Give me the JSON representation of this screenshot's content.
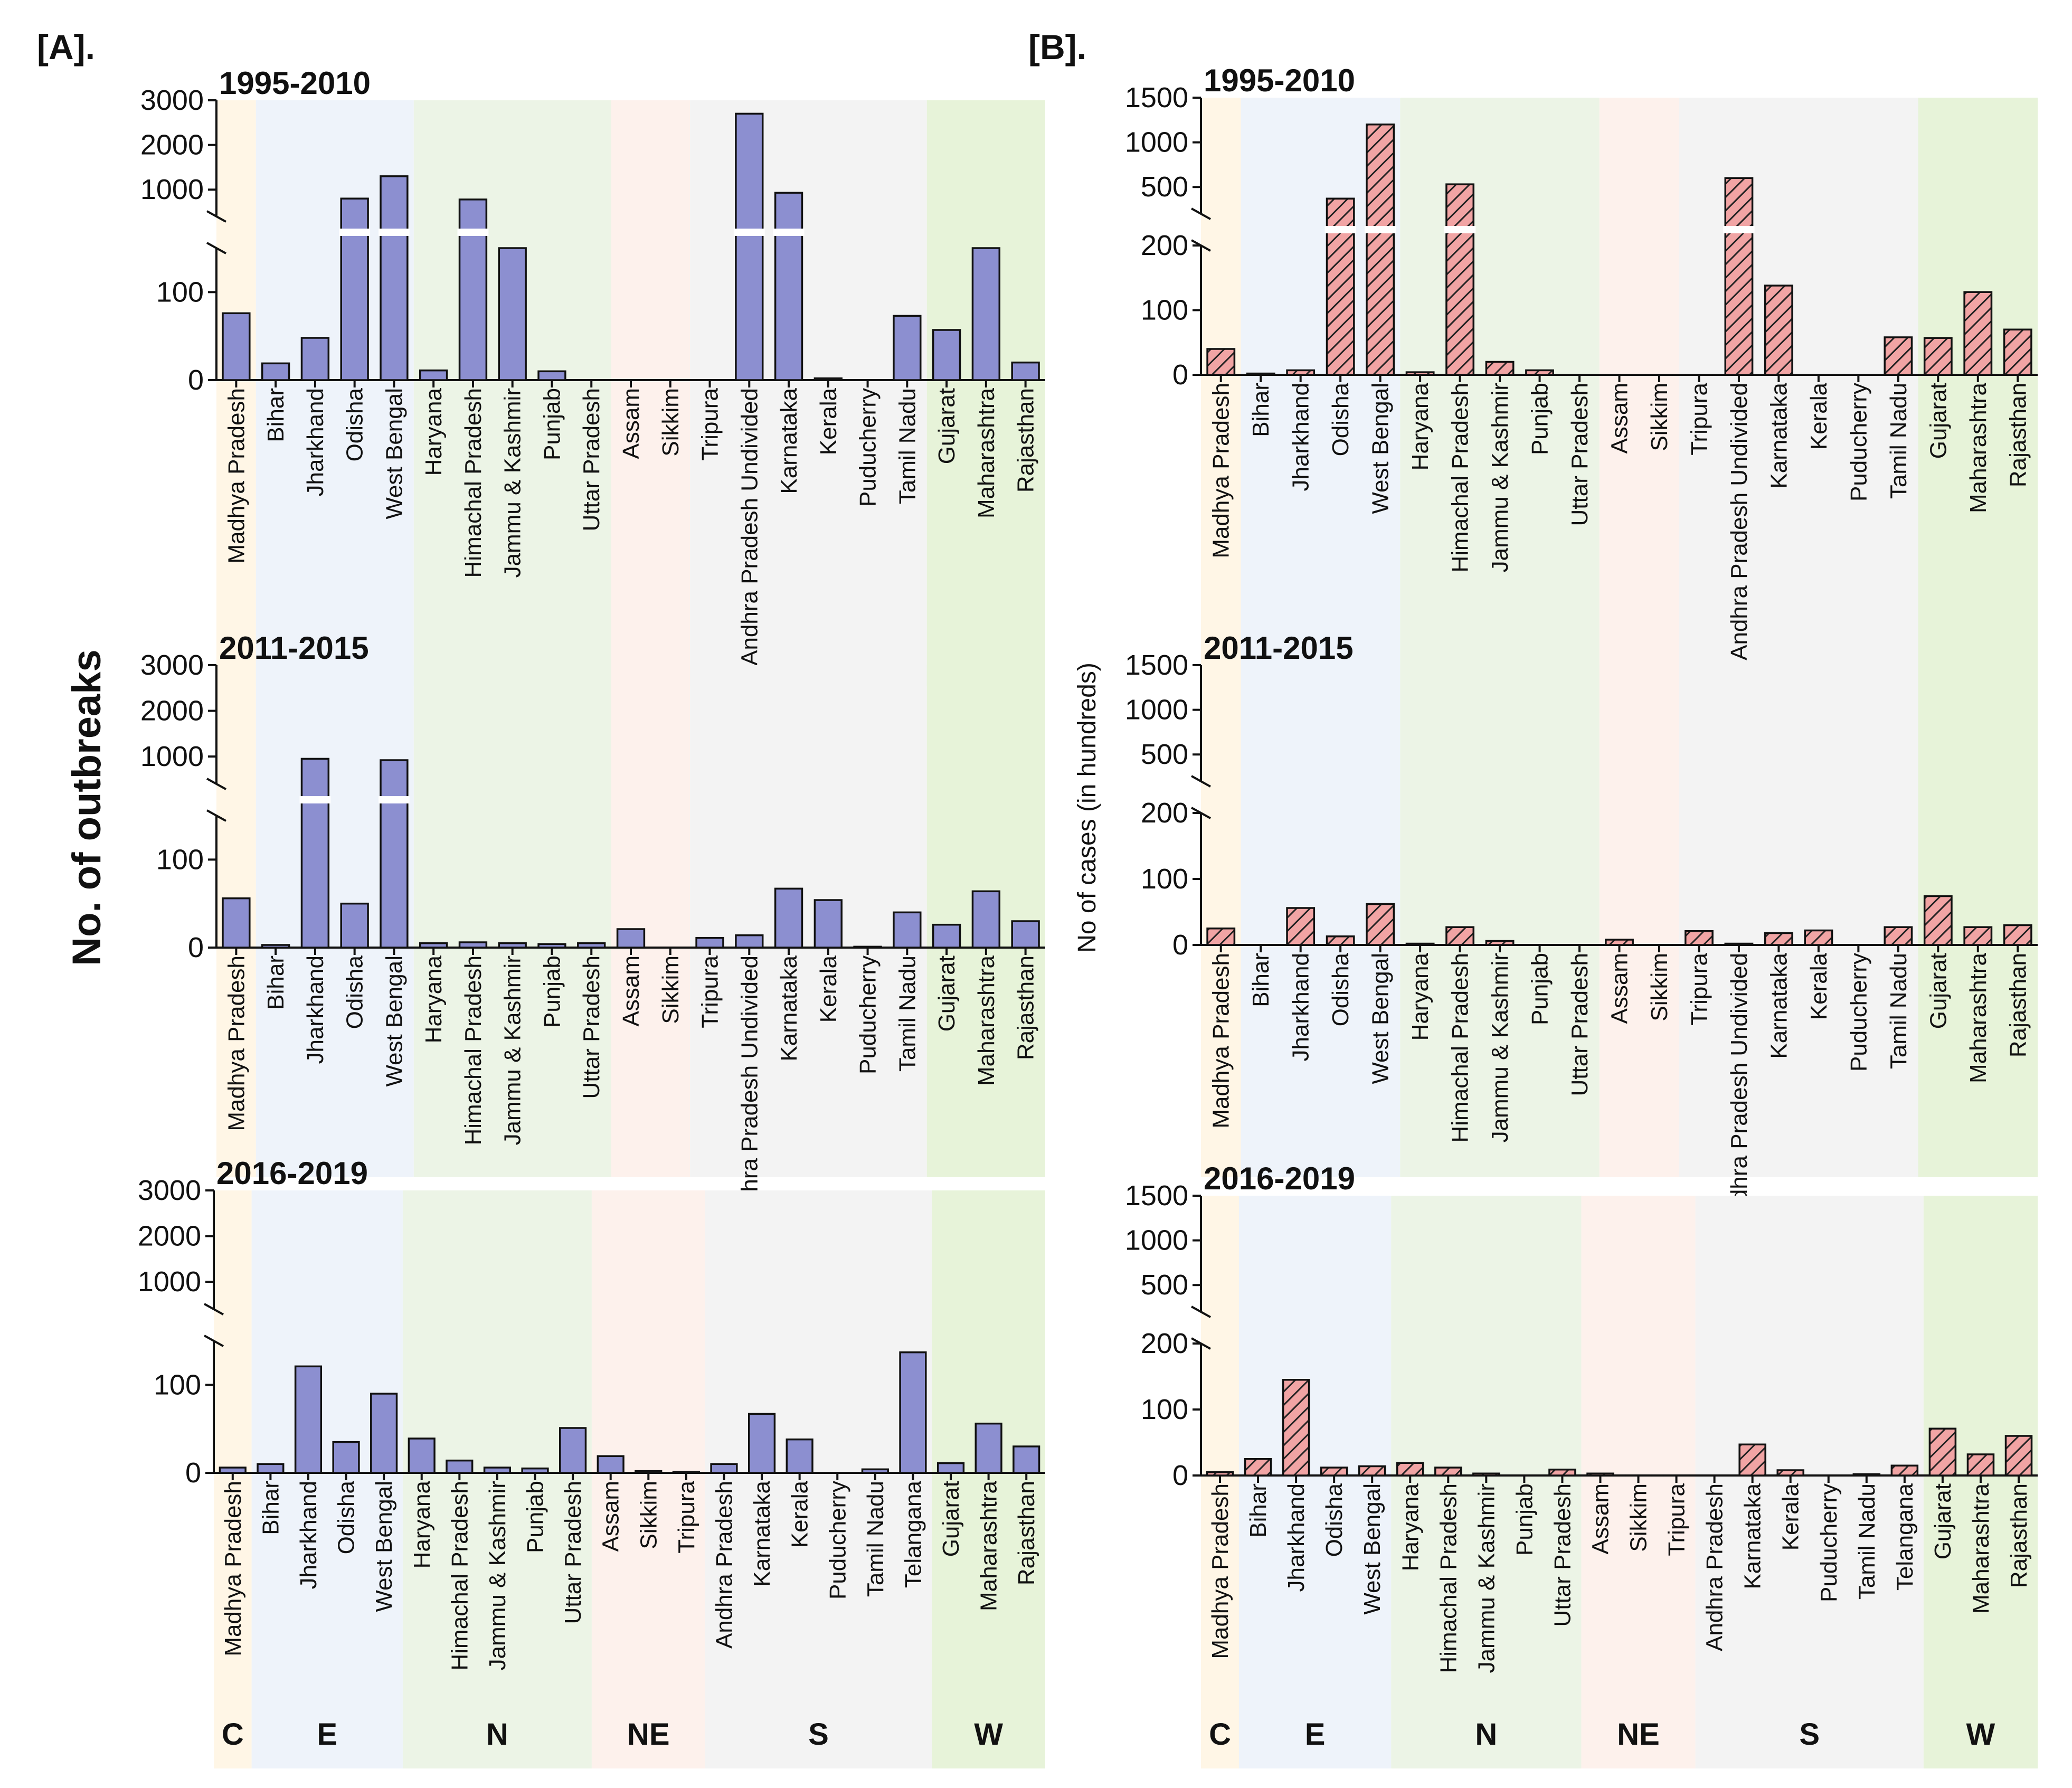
{
  "panel_labels": {
    "a": "[A].",
    "b": "[B]."
  },
  "y_labels": {
    "a": "No. of outbreaks",
    "b": "No of cases (in hundreds)"
  },
  "colors": {
    "bar_a": "#8c8fd0",
    "bar_b_fill": "#f1a4a4",
    "bar_b_hatch": "#222222",
    "regions": {
      "C": "#fff6e6",
      "E": "#eef3fa",
      "N": "#ecf4e6",
      "NE": "#fdf1ec",
      "S": "#f3f3f3",
      "W": "#e7f3d9"
    }
  },
  "chart_data": [
    {
      "id": "A1",
      "type": "bar",
      "title": "1995-2010",
      "ylabel": "No. of outbreaks",
      "y_broken": true,
      "ylim_lower": [
        0,
        150
      ],
      "ylim_upper": [
        400,
        3000
      ],
      "yticks_lower": [
        "0",
        "100"
      ],
      "yticks_upper": [
        "1000",
        "2000",
        "3000"
      ],
      "categories": [
        "Madhya Pradesh",
        "Bihar",
        "Jharkhand",
        "Odisha",
        "West Bengal",
        "Haryana",
        "Himachal Pradesh",
        "Jammu & Kashmir",
        "Punjab",
        "Uttar Pradesh",
        "Assam",
        "Sikkim",
        "Tripura",
        "Andhra Pradesh Undivided",
        "Karnataka",
        "Kerala",
        "Puducherry",
        "Tamil Nadu",
        "Gujarat",
        "Maharashtra",
        "Rajasthan"
      ],
      "values": [
        76,
        19,
        48,
        800,
        1300,
        11,
        780,
        150,
        10,
        0,
        0,
        0,
        0,
        2700,
        930,
        2,
        0,
        73,
        57,
        150,
        20
      ],
      "regions": [
        {
          "label": "C",
          "count": 1
        },
        {
          "label": "E",
          "count": 4
        },
        {
          "label": "N",
          "count": 5
        },
        {
          "label": "NE",
          "count": 2
        },
        {
          "label": "S",
          "count": 6
        },
        {
          "label": "W",
          "count": 3
        }
      ]
    },
    {
      "id": "A2",
      "type": "bar",
      "title": "2011-2015",
      "ylabel": "No. of outbreaks",
      "y_broken": true,
      "ylim_lower": [
        0,
        150
      ],
      "ylim_upper": [
        400,
        3000
      ],
      "yticks_lower": [
        "0",
        "100"
      ],
      "yticks_upper": [
        "1000",
        "2000",
        "3000"
      ],
      "categories": [
        "Madhya Pradesh",
        "Bihar",
        "Jharkhand",
        "Odisha",
        "West Bengal",
        "Haryana",
        "Himachal Pradesh",
        "Jammu & Kashmir",
        "Punjab",
        "Uttar Pradesh",
        "Assam",
        "Sikkim",
        "Tripura",
        "Andhra Pradesh Undivided",
        "Karnataka",
        "Kerala",
        "Puducherry",
        "Tamil Nadu",
        "Gujarat",
        "Maharashtra",
        "Rajasthan"
      ],
      "values": [
        56,
        3,
        950,
        50,
        920,
        5,
        6,
        5,
        4,
        5,
        21,
        0,
        11,
        14,
        67,
        54,
        1,
        40,
        26,
        64,
        30
      ],
      "regions": [
        {
          "label": "C",
          "count": 1
        },
        {
          "label": "E",
          "count": 4
        },
        {
          "label": "N",
          "count": 5
        },
        {
          "label": "NE",
          "count": 2
        },
        {
          "label": "S",
          "count": 6
        },
        {
          "label": "W",
          "count": 3
        }
      ]
    },
    {
      "id": "A3",
      "type": "bar",
      "title": "2016-2019",
      "ylabel": "No. of outbreaks",
      "y_broken": true,
      "ylim_lower": [
        0,
        150
      ],
      "ylim_upper": [
        400,
        3000
      ],
      "yticks_lower": [
        "0",
        "100"
      ],
      "yticks_upper": [
        "1000",
        "2000",
        "3000"
      ],
      "categories": [
        "Madhya Pradesh",
        "Bihar",
        "Jharkhand",
        "Odisha",
        "West Bengal",
        "Haryana",
        "Himachal Pradesh",
        "Jammu & Kashmir",
        "Punjab",
        "Uttar Pradesh",
        "Assam",
        "Sikkim",
        "Tripura",
        "Andhra Pradesh",
        "Karnataka",
        "Kerala",
        "Puducherry",
        "Tamil Nadu",
        "Telangana",
        "Gujarat",
        "Maharashtra",
        "Rajasthan"
      ],
      "values": [
        6,
        10,
        121,
        35,
        90,
        39,
        14,
        6,
        5,
        51,
        19,
        2,
        1,
        10,
        67,
        38,
        0,
        4,
        137,
        11,
        56,
        30
      ],
      "regions": [
        {
          "label": "C",
          "count": 1
        },
        {
          "label": "E",
          "count": 4
        },
        {
          "label": "N",
          "count": 5
        },
        {
          "label": "NE",
          "count": 3
        },
        {
          "label": "S",
          "count": 6
        },
        {
          "label": "W",
          "count": 3
        }
      ],
      "region_labels": true
    },
    {
      "id": "B1",
      "type": "bar",
      "title": "1995-2010",
      "ylabel": "No of cases (in hundreds)",
      "y_broken": true,
      "ylim_lower": [
        0,
        200
      ],
      "ylim_upper": [
        200,
        1500
      ],
      "yticks_lower": [
        "0",
        "100",
        "200"
      ],
      "yticks_upper": [
        "500",
        "1000",
        "1500"
      ],
      "categories": [
        "Madhya Pradesh",
        "Bihar",
        "Jharkhand",
        "Odisha",
        "West Bengal",
        "Haryana",
        "Himachal Pradesh",
        "Jammu & Kashmir",
        "Punjab",
        "Uttar Pradesh",
        "Assam",
        "Sikkim",
        "Tripura",
        "Andhra Pradesh Undivided",
        "Karnataka",
        "Kerala",
        "Puducherry",
        "Tamil Nadu",
        "Gujarat",
        "Maharashtra",
        "Rajasthan"
      ],
      "values": [
        40,
        2,
        7,
        370,
        1200,
        4,
        530,
        20,
        7,
        0,
        0,
        0,
        0,
        600,
        138,
        0,
        0,
        58,
        57,
        128,
        70
      ],
      "regions": [
        {
          "label": "C",
          "count": 1
        },
        {
          "label": "E",
          "count": 4
        },
        {
          "label": "N",
          "count": 5
        },
        {
          "label": "NE",
          "count": 2
        },
        {
          "label": "S",
          "count": 6
        },
        {
          "label": "W",
          "count": 3
        }
      ]
    },
    {
      "id": "B2",
      "type": "bar",
      "title": "2011-2015",
      "ylabel": "No of cases (in hundreds)",
      "y_broken": true,
      "ylim_lower": [
        0,
        200
      ],
      "ylim_upper": [
        200,
        1500
      ],
      "yticks_lower": [
        "0",
        "100",
        "200"
      ],
      "yticks_upper": [
        "500",
        "1000",
        "1500"
      ],
      "categories": [
        "Madhya Pradesh",
        "Bihar",
        "Jharkhand",
        "Odisha",
        "West Bengal",
        "Haryana",
        "Himachal Pradesh",
        "Jammu & Kashmir",
        "Punjab",
        "Uttar Pradesh",
        "Assam",
        "Sikkim",
        "Tripura",
        "Andhra Pradesh Undivided",
        "Karnataka",
        "Kerala",
        "Puducherry",
        "Tamil Nadu",
        "Gujarat",
        "Maharashtra",
        "Rajasthan"
      ],
      "values": [
        25,
        0,
        56,
        13,
        62,
        2,
        27,
        6,
        0,
        0,
        8,
        0,
        21,
        2,
        18,
        22,
        0,
        27,
        74,
        27,
        30
      ],
      "regions": [
        {
          "label": "C",
          "count": 1
        },
        {
          "label": "E",
          "count": 4
        },
        {
          "label": "N",
          "count": 5
        },
        {
          "label": "NE",
          "count": 2
        },
        {
          "label": "S",
          "count": 6
        },
        {
          "label": "W",
          "count": 3
        }
      ]
    },
    {
      "id": "B3",
      "type": "bar",
      "title": "2016-2019",
      "ylabel": "No of cases (in hundreds)",
      "y_broken": true,
      "ylim_lower": [
        0,
        200
      ],
      "ylim_upper": [
        200,
        1500
      ],
      "yticks_lower": [
        "0",
        "100",
        "200"
      ],
      "yticks_upper": [
        "500",
        "1000",
        "1500"
      ],
      "categories": [
        "Madhya Pradesh",
        "Bihar",
        "Jharkhand",
        "Odisha",
        "West Bengal",
        "Haryana",
        "Himachal Pradesh",
        "Jammu & Kashmir",
        "Punjab",
        "Uttar Pradesh",
        "Assam",
        "Sikkim",
        "Tripura",
        "Andhra Pradesh",
        "Karnataka",
        "Kerala",
        "Puducherry",
        "Tamil Nadu",
        "Telangana",
        "Gujarat",
        "Maharashtra",
        "Rajasthan"
      ],
      "values": [
        5,
        25,
        145,
        12,
        14,
        19,
        12,
        3,
        0,
        9,
        3,
        0,
        0,
        0,
        47,
        8,
        0,
        2,
        15,
        71,
        32,
        60
      ],
      "regions": [
        {
          "label": "C",
          "count": 1
        },
        {
          "label": "E",
          "count": 4
        },
        {
          "label": "N",
          "count": 5
        },
        {
          "label": "NE",
          "count": 3
        },
        {
          "label": "S",
          "count": 6
        },
        {
          "label": "W",
          "count": 3
        }
      ],
      "region_labels": true
    }
  ]
}
